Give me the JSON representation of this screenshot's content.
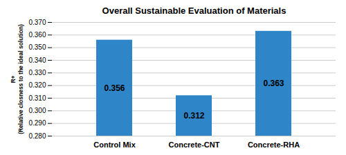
{
  "chart_data": {
    "type": "bar",
    "title": "Overall Sustainable Evaluation of Materials",
    "ylabel": "R+\n(Relative closness to the ideal solution)",
    "categories": [
      "Control Mix",
      "Concrete-CNT",
      "Concrete-RHA"
    ],
    "values": [
      0.356,
      0.312,
      0.363
    ],
    "color": "#2e86c8",
    "ylim": [
      0.28,
      0.37
    ],
    "yticks": [
      {
        "value": 0.28,
        "label": "0.280"
      },
      {
        "value": 0.29,
        "label": "0.290"
      },
      {
        "value": 0.3,
        "label": "0.300"
      },
      {
        "value": 0.31,
        "label": "0.310"
      },
      {
        "value": 0.32,
        "label": "0.320"
      },
      {
        "value": 0.33,
        "label": "0.330"
      },
      {
        "value": 0.34,
        "label": "0.340"
      },
      {
        "value": 0.35,
        "label": "0.350"
      },
      {
        "value": 0.36,
        "label": "0.360"
      },
      {
        "value": 0.37,
        "label": "0.370"
      }
    ],
    "grid": true,
    "data_labels": true
  }
}
